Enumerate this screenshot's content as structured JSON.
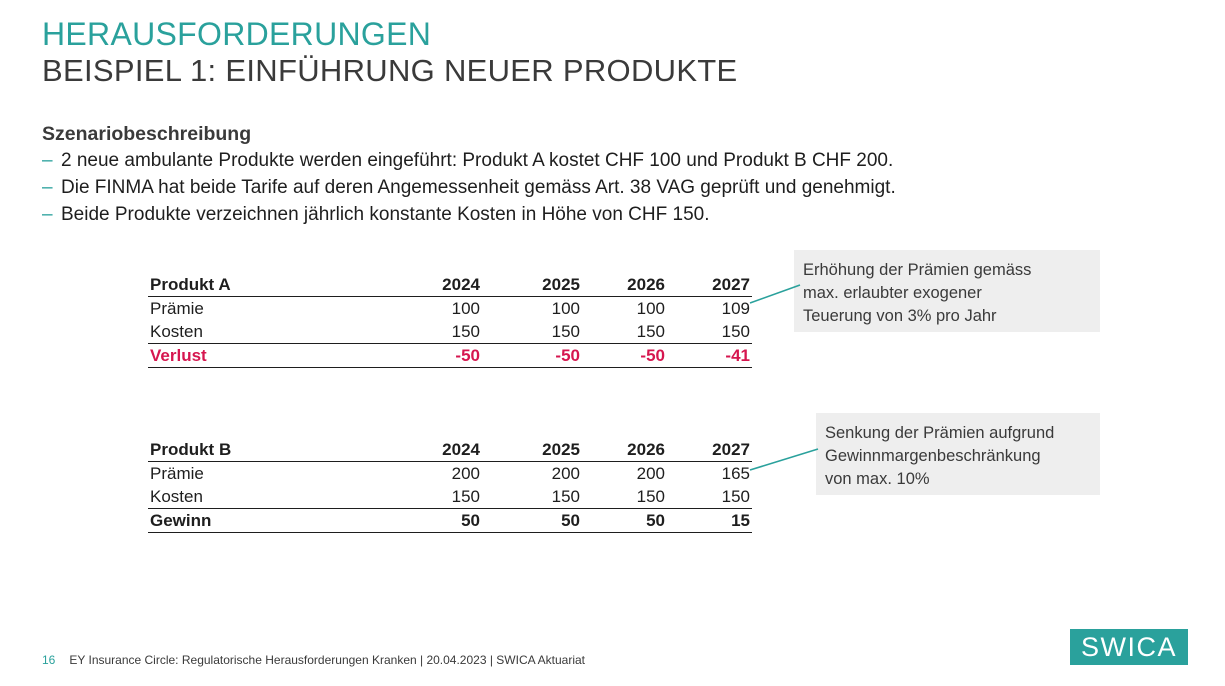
{
  "title": {
    "line1": "HERAUSFORDERUNGEN",
    "line2": "BEISPIEL 1: EINFÜHRUNG NEUER PRODUKTE"
  },
  "scenario": {
    "heading": "Szenariobeschreibung",
    "bullets": [
      "2 neue ambulante Produkte werden eingeführt: Produkt A kostet CHF 100 und Produkt B CHF 200.",
      "Die FINMA hat beide Tarife auf deren Angemessenheit gemäss Art. 38 VAG geprüft und genehmigt.",
      "Beide Produkte verzeichnen jährlich konstante Kosten in Höhe von CHF 150."
    ],
    "bullet_marker": "–"
  },
  "table_a": {
    "header": [
      "Produkt A",
      "2024",
      "2025",
      "2026",
      "2027"
    ],
    "rows": [
      [
        "Prämie",
        "100",
        "100",
        "100",
        "109"
      ],
      [
        "Kosten",
        "150",
        "150",
        "150",
        "150"
      ]
    ],
    "total": [
      "Verlust",
      "-50",
      "-50",
      "-50",
      "-41"
    ],
    "total_color": "#d6164f"
  },
  "table_b": {
    "header": [
      "Produkt B",
      "2024",
      "2025",
      "2026",
      "2027"
    ],
    "rows": [
      [
        "Prämie",
        "200",
        "200",
        "200",
        "165"
      ],
      [
        "Kosten",
        "150",
        "150",
        "150",
        "150"
      ]
    ],
    "total": [
      "Gewinn",
      "50",
      "50",
      "50",
      "15"
    ]
  },
  "notes": {
    "a": [
      "Erhöhung der Prämien gemäss",
      "max. erlaubter exogener",
      "Teuerung von 3% pro Jahr"
    ],
    "b": [
      "Senkung der Prämien aufgrund",
      "Gewinnmargenbeschränkung",
      "von max. 10%"
    ]
  },
  "footer": {
    "page_number": "16",
    "text": "EY Insurance Circle: Regulatorische Herausforderungen Kranken | 20.04.2023 | SWICA Aktuariat"
  },
  "logo": {
    "text": "SWICA"
  },
  "colors": {
    "accent": "#2aa19c",
    "loss": "#d6164f",
    "note_bg": "#eeeeee"
  }
}
